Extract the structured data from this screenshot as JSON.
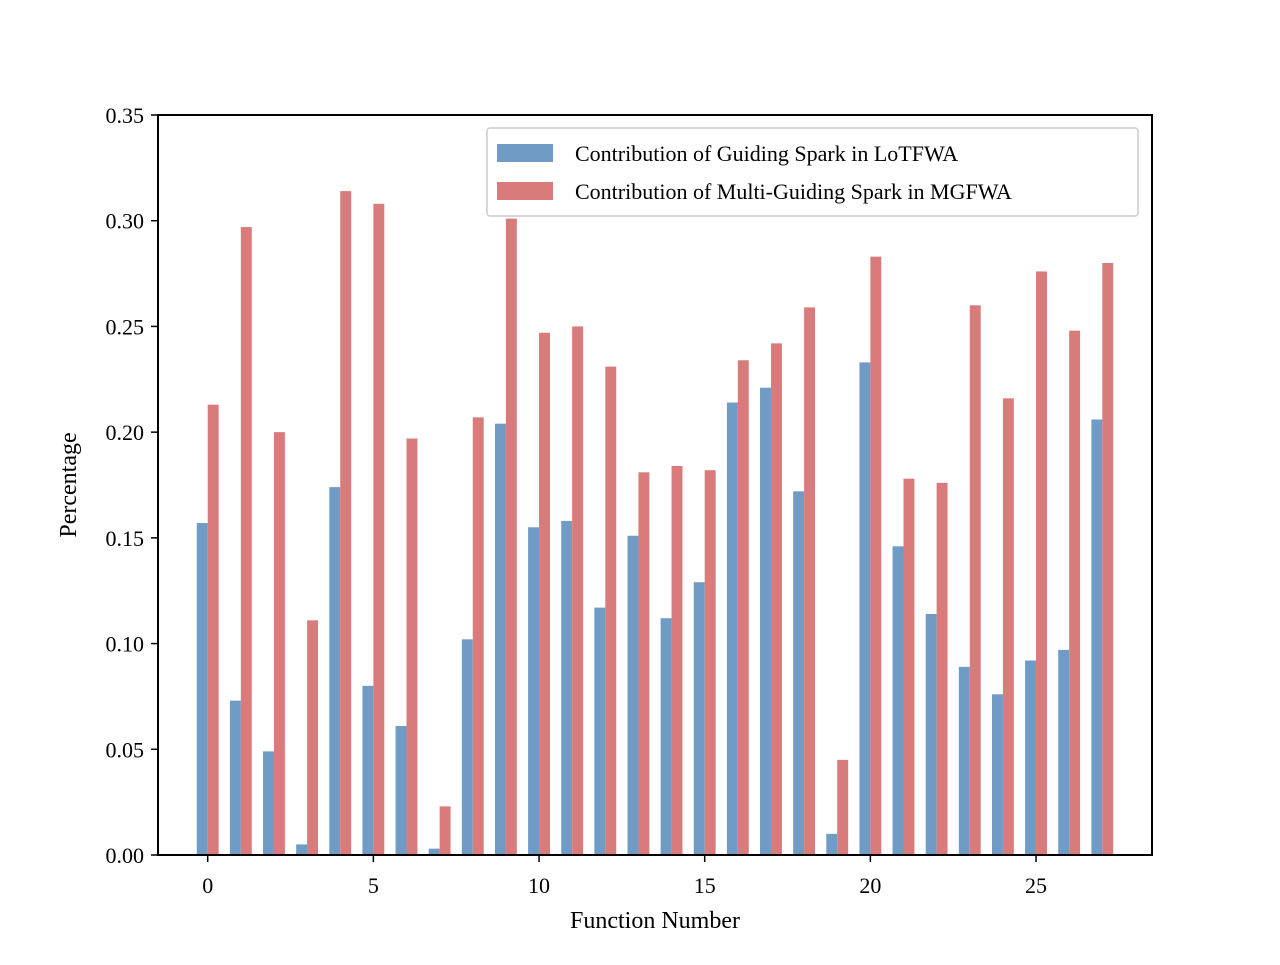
{
  "chart_data": {
    "type": "bar",
    "title": "",
    "xlabel": "Function Number",
    "ylabel": "Percentage",
    "xlim": [
      -1.5,
      28.5
    ],
    "ylim": [
      0,
      0.35
    ],
    "xticks": [
      {
        "value": 0,
        "label": "0"
      },
      {
        "value": 5,
        "label": "5"
      },
      {
        "value": 10,
        "label": "10"
      },
      {
        "value": 15,
        "label": "15"
      },
      {
        "value": 20,
        "label": "20"
      },
      {
        "value": 25,
        "label": "25"
      }
    ],
    "yticks": [
      {
        "value": 0,
        "label": "0.00"
      },
      {
        "value": 0.05,
        "label": "0.05"
      },
      {
        "value": 0.1,
        "label": "0.10"
      },
      {
        "value": 0.15,
        "label": "0.15"
      },
      {
        "value": 0.2,
        "label": "0.20"
      },
      {
        "value": 0.25,
        "label": "0.25"
      },
      {
        "value": 0.3,
        "label": "0.30"
      },
      {
        "value": 0.35,
        "label": "0.35"
      }
    ],
    "grid": false,
    "legend_position": "top-right",
    "categories": [
      0,
      1,
      2,
      3,
      4,
      5,
      6,
      7,
      8,
      9,
      10,
      11,
      12,
      13,
      14,
      15,
      16,
      17,
      18,
      19,
      20,
      21,
      22,
      23,
      24,
      25,
      26,
      27
    ],
    "series": [
      {
        "name": "Contribution of Guiding Spark in LoTFWA",
        "color": "#6f9bc4",
        "values": [
          0.157,
          0.073,
          0.049,
          0.005,
          0.174,
          0.08,
          0.061,
          0.003,
          0.102,
          0.204,
          0.155,
          0.158,
          0.117,
          0.151,
          0.112,
          0.129,
          0.214,
          0.221,
          0.172,
          0.01,
          0.233,
          0.146,
          0.114,
          0.089,
          0.076,
          0.092,
          0.097,
          0.206
        ]
      },
      {
        "name": "Contribution of Multi-Guiding Spark in MGFWA",
        "color": "#d97b7b",
        "values": [
          0.213,
          0.297,
          0.2,
          0.111,
          0.314,
          0.308,
          0.197,
          0.023,
          0.207,
          0.301,
          0.247,
          0.25,
          0.231,
          0.181,
          0.184,
          0.182,
          0.234,
          0.242,
          0.259,
          0.045,
          0.283,
          0.178,
          0.176,
          0.26,
          0.216,
          0.276,
          0.248,
          0.28
        ]
      }
    ]
  }
}
